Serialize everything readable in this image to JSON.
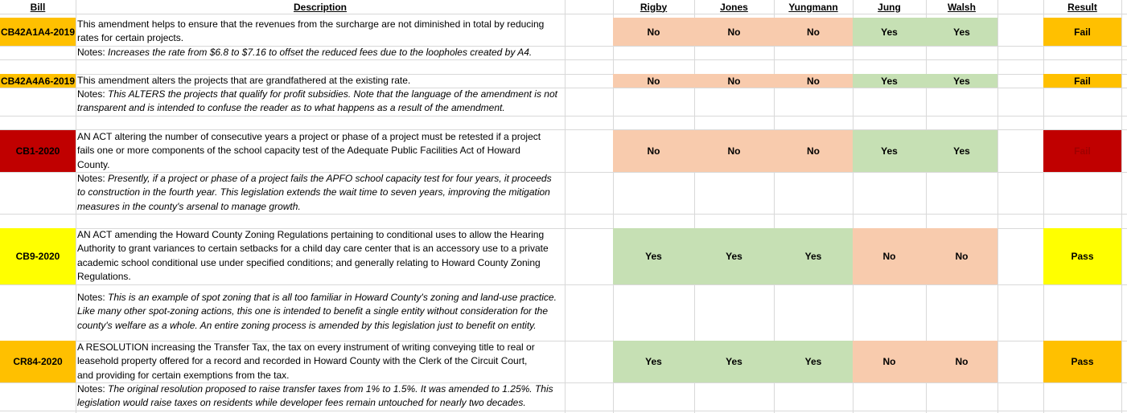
{
  "headers": {
    "bill": "Bill",
    "description": "Description",
    "rigby": "Rigby",
    "jones": "Jones",
    "yungmann": "Yungmann",
    "jung": "Jung",
    "walsh": "Walsh",
    "result": "Result"
  },
  "rows": [
    {
      "bill": "CB42A1A4-2019",
      "description": [
        "This amendment helps to ensure that the revenues from the surcharge are not diminished in total by reducing",
        "rates for certain projects."
      ],
      "notes_label": "Notes: ",
      "notes": [
        "Increases the rate from $6.8 to $7.16 to offset the reduced fees due to the loopholes created by A4."
      ],
      "votes": [
        "No",
        "No",
        "No",
        "Yes",
        "Yes"
      ],
      "result": "Fail"
    },
    {
      "bill": "CB42A4A6-2019",
      "description": [
        "This amendment alters the projects that are grandfathered at the existing rate."
      ],
      "notes_label": "Notes: ",
      "notes": [
        "This ALTERS the projects that qualify for profit subsidies. Note that the language of the amendment is not",
        "transparent and is intended to confuse the reader as to what happens as a result of the amendment."
      ],
      "votes": [
        "No",
        "No",
        "No",
        "Yes",
        "Yes"
      ],
      "result": "Fail"
    },
    {
      "bill": "CB1-2020",
      "description": [
        "AN ACT altering the number of consecutive years a project or phase of a project must be retested if a project",
        "fails one or more components of the school capacity test of the Adequate Public Facilities Act of Howard",
        "County."
      ],
      "notes_label": "Notes: ",
      "notes": [
        "Presently, if a project or phase of a project fails the APFO school capacity test for four years, it proceeds",
        "to construction in the fourth year. This legislation extends the wait time to seven years, improving the mitigation",
        "measures in the county's arsenal to manage growth."
      ],
      "votes": [
        "No",
        "No",
        "No",
        "Yes",
        "Yes"
      ],
      "result": "Fail"
    },
    {
      "bill": "CB9-2020",
      "description": [
        "AN ACT amending the Howard County Zoning Regulations pertaining to conditional uses to allow the Hearing",
        "Authority to grant variances to certain setbacks for a child day care center that is an accessory use to a private",
        "academic school conditional use under specified conditions; and generally relating to Howard County Zoning",
        "Regulations."
      ],
      "notes_label": "Notes: ",
      "notes": [
        "This is an example of spot zoning that is all too familiar in Howard County's zoning and land-use practice.",
        "Like many other spot-zoning actions, this one is intended to benefit a single entity without consideration for the",
        "county's welfare as a whole. An entire zoning process is amended by this legislation just to benefit on entity."
      ],
      "votes": [
        "Yes",
        "Yes",
        "Yes",
        "No",
        "No"
      ],
      "result": "Pass"
    },
    {
      "bill": "CR84-2020",
      "description": [
        "A RESOLUTION increasing the Transfer Tax, the tax on every instrument of writing conveying title to real or",
        "leasehold property offered for a record and recorded in Howard County with the Clerk of the Circuit Court,",
        "and providing for certain exemptions from the tax."
      ],
      "notes_label": "Notes: ",
      "notes": [
        "The original resolution proposed to raise transfer taxes from 1% to 1.5%. It was amended to 1.25%. This",
        "legislation would raise taxes on residents while developer fees remain untouched for nearly two decades."
      ],
      "votes": [
        "Yes",
        "Yes",
        "Yes",
        "No",
        "No"
      ],
      "result": "Pass"
    }
  ]
}
